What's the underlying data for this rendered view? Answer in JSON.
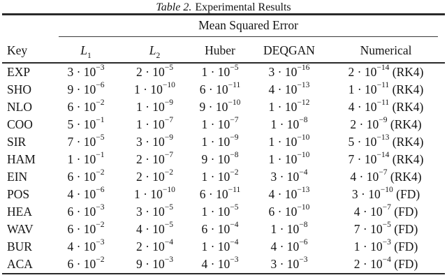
{
  "caption": {
    "number": "Table 2.",
    "text": "Experimental Results"
  },
  "table": {
    "group_header": "Mean Squared Error",
    "columns": [
      {
        "label": "Key"
      },
      {
        "label": "L",
        "sub": "1"
      },
      {
        "label": "L",
        "sub": "2"
      },
      {
        "label": "Huber"
      },
      {
        "label": "DEQGAN"
      },
      {
        "label": "Numerical"
      }
    ],
    "value_format": "mantissa · 10^exponent",
    "rows": [
      {
        "key": "EXP",
        "values": [
          [
            3,
            -3
          ],
          [
            2,
            -5
          ],
          [
            1,
            -5
          ],
          [
            3,
            -16
          ],
          [
            2,
            -14
          ]
        ],
        "method": "(RK4)"
      },
      {
        "key": "SHO",
        "values": [
          [
            9,
            -6
          ],
          [
            1,
            -10
          ],
          [
            6,
            -11
          ],
          [
            4,
            -13
          ],
          [
            1,
            -11
          ]
        ],
        "method": "(RK4)"
      },
      {
        "key": "NLO",
        "values": [
          [
            6,
            -2
          ],
          [
            1,
            -9
          ],
          [
            9,
            -10
          ],
          [
            1,
            -12
          ],
          [
            4,
            -11
          ]
        ],
        "method": "(RK4)"
      },
      {
        "key": "COO",
        "values": [
          [
            5,
            -1
          ],
          [
            1,
            -7
          ],
          [
            1,
            -7
          ],
          [
            1,
            -8
          ],
          [
            2,
            -9
          ]
        ],
        "method": "(RK4)"
      },
      {
        "key": "SIR",
        "values": [
          [
            7,
            -5
          ],
          [
            3,
            -9
          ],
          [
            1,
            -9
          ],
          [
            1,
            -10
          ],
          [
            5,
            -13
          ]
        ],
        "method": "(RK4)"
      },
      {
        "key": "HAM",
        "values": [
          [
            1,
            -1
          ],
          [
            2,
            -7
          ],
          [
            9,
            -8
          ],
          [
            1,
            -10
          ],
          [
            7,
            -14
          ]
        ],
        "method": "(RK4)"
      },
      {
        "key": "EIN",
        "values": [
          [
            6,
            -2
          ],
          [
            2,
            -2
          ],
          [
            1,
            -2
          ],
          [
            3,
            -4
          ],
          [
            4,
            -7
          ]
        ],
        "method": "(RK4)"
      },
      {
        "key": "POS",
        "values": [
          [
            4,
            -6
          ],
          [
            1,
            -10
          ],
          [
            6,
            -11
          ],
          [
            4,
            -13
          ],
          [
            3,
            -10
          ]
        ],
        "method": "(FD)"
      },
      {
        "key": "HEA",
        "values": [
          [
            6,
            -3
          ],
          [
            3,
            -5
          ],
          [
            1,
            -5
          ],
          [
            6,
            -10
          ],
          [
            4,
            -7
          ]
        ],
        "method": "(FD)"
      },
      {
        "key": "WAV",
        "values": [
          [
            6,
            -2
          ],
          [
            4,
            -5
          ],
          [
            6,
            -4
          ],
          [
            1,
            -8
          ],
          [
            7,
            -5
          ]
        ],
        "method": "(FD)"
      },
      {
        "key": "BUR",
        "values": [
          [
            4,
            -3
          ],
          [
            2,
            -4
          ],
          [
            1,
            -4
          ],
          [
            4,
            -6
          ],
          [
            1,
            -3
          ]
        ],
        "method": "(FD)"
      },
      {
        "key": "ACA",
        "values": [
          [
            6,
            -2
          ],
          [
            9,
            -3
          ],
          [
            4,
            -3
          ],
          [
            3,
            -3
          ],
          [
            2,
            -4
          ]
        ],
        "method": "(FD)"
      }
    ]
  },
  "colors": {
    "text": "#141414",
    "rule_heavy": "#2a2a2a",
    "rule_light": "#3a3a3a",
    "background": "#ffffff"
  }
}
